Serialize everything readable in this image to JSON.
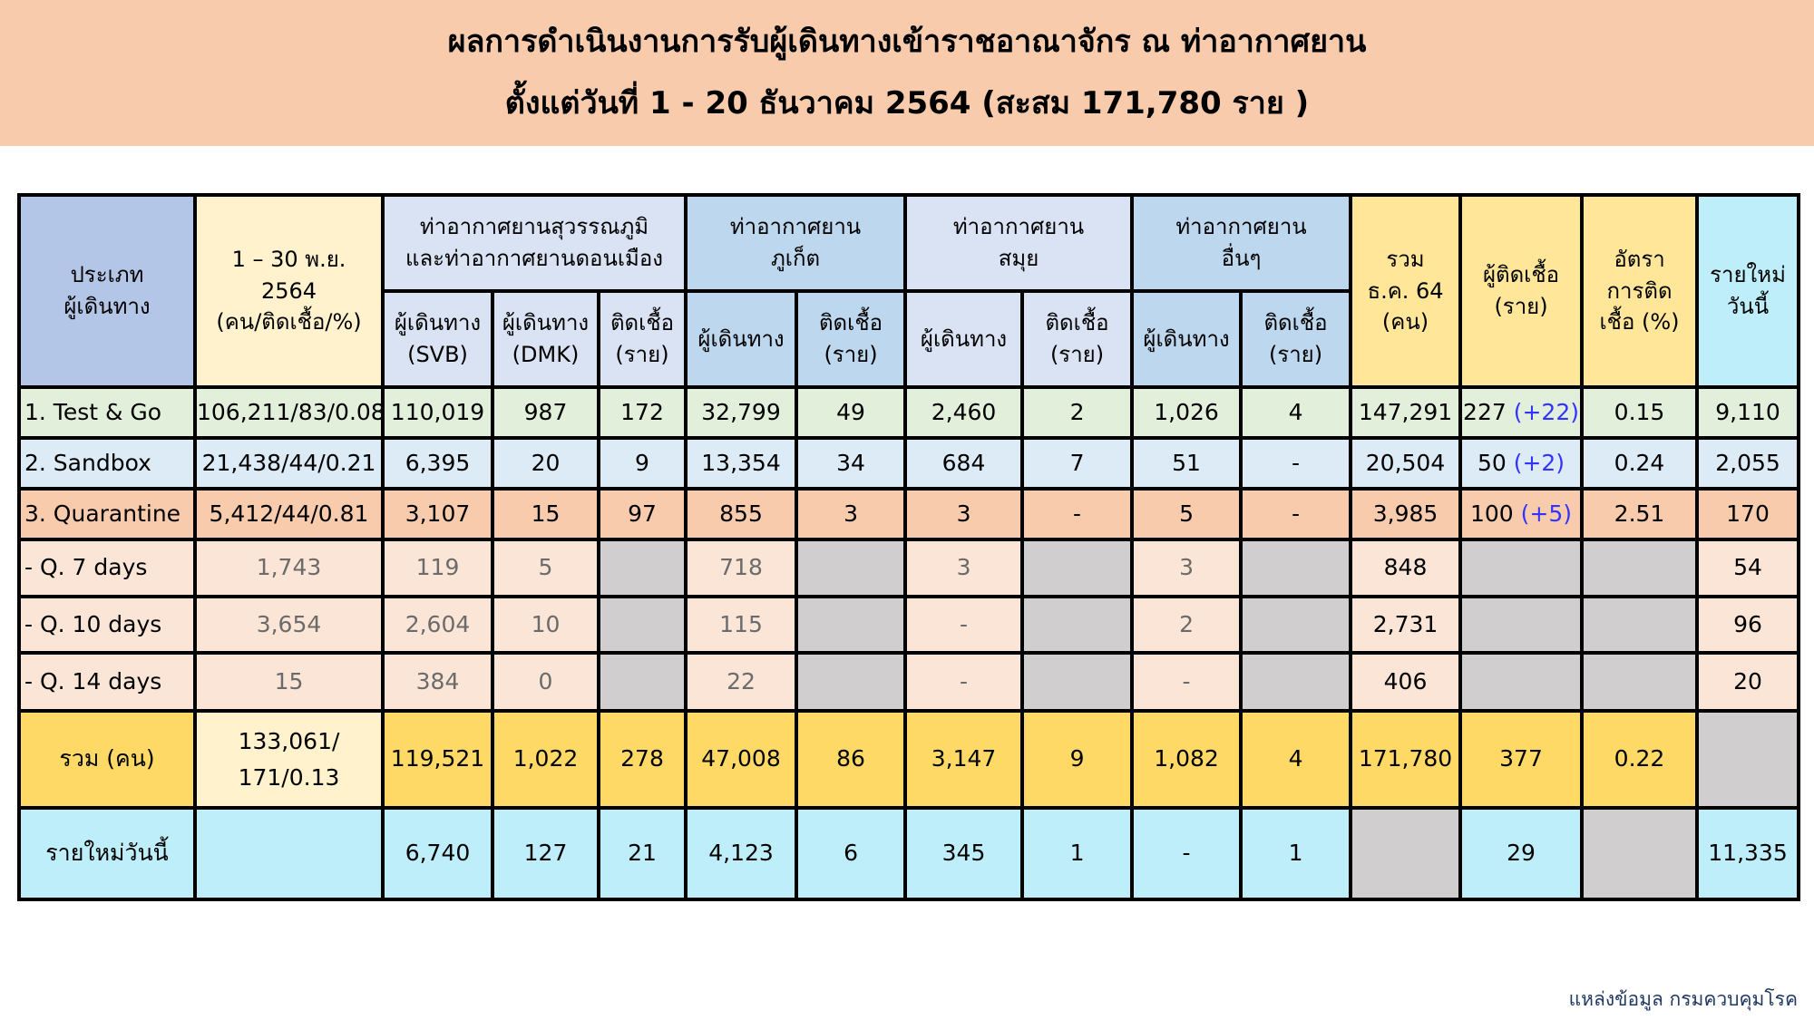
{
  "title": {
    "line1": "ผลการดำเนินงานการรับผู้เดินทางเข้าราชอาณาจักร ณ ท่าอากาศยาน",
    "line2": "ตั้งแต่วันที่  1 - 20  ธันวาคม 2564  (สะสม 171,780 ราย )"
  },
  "colors": {
    "title_band": "#f8cbad",
    "delta_text": "#3333ff",
    "row_test_go": "#e2efda",
    "row_sandbox": "#ddebf7",
    "row_quarantine": "#f8cbad",
    "row_quarantine_sub": "#fbe5d6",
    "row_total": "#ffd966",
    "row_new_today": "#bdeefa",
    "empty_cell": "#d0cece"
  },
  "header": {
    "type_line1": "ประเภท",
    "type_line2": "ผู้เดินทาง",
    "nov_line1": "1 – 30 พ.ย.",
    "nov_line2": "2564",
    "nov_line3": "(คน/ติดเชื้อ/%)",
    "bkk_line1": "ท่าอากาศยานสุวรรณภูมิ",
    "bkk_line2": "และท่าอากาศยานดอนเมือง",
    "hkt_line1": "ท่าอากาศยาน",
    "hkt_line2": "ภูเก็ต",
    "usm_line1": "ท่าอากาศยาน",
    "usm_line2": "สมุย",
    "oth_line1": "ท่าอากาศยาน",
    "oth_line2": "อื่นๆ",
    "total_line1": "รวม",
    "total_line2": "ธ.ค. 64",
    "total_line3": "(คน)",
    "infected_line1": "ผู้ติดเชื้อ",
    "infected_line2": "(ราย)",
    "rate_line1": "อัตรา",
    "rate_line2": "การติด",
    "rate_line3": "เชื้อ (%)",
    "new_line1": "รายใหม่",
    "new_line2": "วันนี้",
    "svb_line1": "ผู้เดินทาง",
    "svb_line2": "(SVB)",
    "dmk_line1": "ผู้เดินทาง",
    "dmk_line2": "(DMK)",
    "inf_line1": "ติดเชื้อ",
    "inf_line2": "(ราย)",
    "travelers": "ผู้เดินทาง"
  },
  "rows": [
    {
      "kind": "tg",
      "cells": [
        "1. Test & Go",
        "106,211/83/0.08",
        "110,019",
        "987",
        "172",
        "32,799",
        "49",
        "2,460",
        "2",
        "1,026",
        "4",
        "147,291",
        {
          "v": "227",
          "d": "(+22)"
        },
        "0.15",
        "9,110"
      ]
    },
    {
      "kind": "sb",
      "cells": [
        "2. Sandbox",
        "21,438/44/0.21",
        "6,395",
        "20",
        "9",
        "13,354",
        "34",
        "684",
        "7",
        "51",
        "-",
        "20,504",
        {
          "v": "50",
          "d": "(+2)"
        },
        "0.24",
        "2,055"
      ]
    },
    {
      "kind": "q",
      "cells": [
        "3. Quarantine",
        "5,412/44/0.81",
        "3,107",
        "15",
        "97",
        "855",
        "3",
        "3",
        "-",
        "5",
        "-",
        "3,985",
        {
          "v": "100",
          "d": "(+5)"
        },
        "2.51",
        "170"
      ]
    },
    {
      "kind": "qs",
      "cells": [
        " - Q. 7 days",
        "1,743",
        "119",
        "5",
        null,
        "718",
        null,
        "3",
        null,
        "3",
        null,
        "848",
        null,
        null,
        "54"
      ]
    },
    {
      "kind": "qs",
      "cells": [
        " - Q. 10 days",
        "3,654",
        "2,604",
        "10",
        null,
        "115",
        null,
        "-",
        null,
        "2",
        null,
        "2,731",
        null,
        null,
        "96"
      ]
    },
    {
      "kind": "qs",
      "cells": [
        " - Q. 14 days",
        "15",
        "384",
        "0",
        null,
        "22",
        null,
        "-",
        null,
        "-",
        null,
        "406",
        null,
        null,
        "20"
      ]
    },
    {
      "kind": "sum",
      "cells": [
        "รวม (คน)",
        "133,061/ 171/0.13",
        "119,521",
        "1,022",
        "278",
        "47,008",
        "86",
        "3,147",
        "9",
        "1,082",
        "4",
        "171,780",
        "377",
        "0.22",
        null
      ]
    },
    {
      "kind": "new",
      "cells": [
        "รายใหม่วันนี้",
        "",
        "6,740",
        "127",
        "21",
        "4,123",
        "6",
        "345",
        "1",
        "-",
        "1",
        null,
        "29",
        null,
        "11,335"
      ]
    }
  ],
  "source": "แหล่งข้อมูล กรมควบคุมโรค"
}
